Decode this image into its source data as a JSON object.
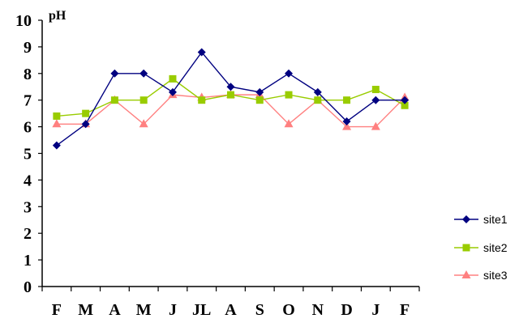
{
  "chart_data": {
    "type": "line",
    "ylabel": "pH",
    "xlabel": "",
    "ylim": [
      0,
      10
    ],
    "yticks": [
      0,
      1,
      2,
      3,
      4,
      5,
      6,
      7,
      8,
      9,
      10
    ],
    "categories": [
      "F",
      "M",
      "A",
      "M",
      "J",
      "JL",
      "A",
      "S",
      "O",
      "N",
      "D",
      "J",
      "F"
    ],
    "grid": false,
    "legend_position": "right",
    "series": [
      {
        "name": "site1",
        "color": "#000080",
        "marker": "diamond",
        "values": [
          5.3,
          6.1,
          8.0,
          8.0,
          7.3,
          8.8,
          7.5,
          7.3,
          8.0,
          7.3,
          6.2,
          7.0,
          7.0
        ]
      },
      {
        "name": "site2",
        "color": "#99CC00",
        "marker": "square",
        "values": [
          6.4,
          6.5,
          7.0,
          7.0,
          7.8,
          7.0,
          7.2,
          7.0,
          7.2,
          7.0,
          7.0,
          7.4,
          6.8
        ]
      },
      {
        "name": "site3",
        "color": "#FF8080",
        "marker": "triangle",
        "values": [
          6.1,
          6.1,
          7.0,
          6.1,
          7.2,
          7.1,
          7.2,
          7.2,
          6.1,
          7.0,
          6.0,
          6.0,
          7.1
        ]
      }
    ]
  }
}
